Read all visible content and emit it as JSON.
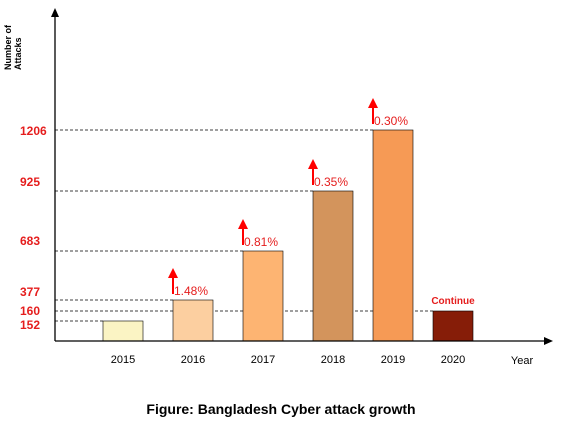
{
  "chart_data": {
    "type": "bar",
    "title": "",
    "xlabel": "Year",
    "ylabel": "Number of Attacks",
    "categories": [
      "2015",
      "2016",
      "2017",
      "2018",
      "2019",
      "2020"
    ],
    "values": [
      152,
      377,
      683,
      925,
      1206,
      160
    ],
    "bar_colors": [
      "#fbf4c4",
      "#fccfa0",
      "#fdb472",
      "#d3945c",
      "#f69a55",
      "#861d08"
    ],
    "bar_labels": [
      "",
      "1.48%",
      "0.81%",
      "0.35%",
      "0.30%",
      "Continue"
    ],
    "bar_label_color": "#e51d1d",
    "arrow_color": "#ff0000",
    "yticks": [
      152,
      160,
      377,
      683,
      925,
      1206
    ],
    "ytick_labels": [
      "152",
      "160",
      "377",
      "683",
      "925",
      "1206"
    ],
    "ytick_color": "#e51d1d",
    "reference_lines": "dashed",
    "caption": "Figure: Bangladesh Cyber attack growth"
  }
}
